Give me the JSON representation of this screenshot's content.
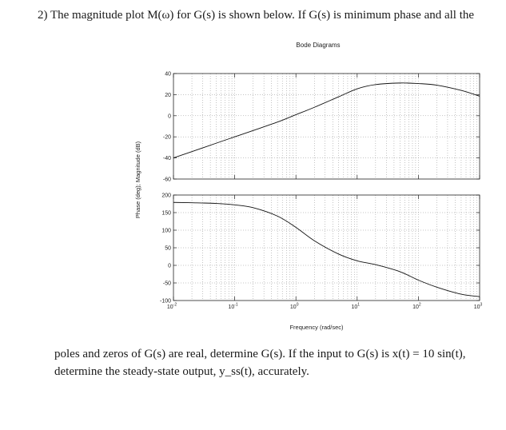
{
  "question": {
    "number": "2)",
    "intro": "The magnitude plot M(ω) for G(s) is shown below. If G(s) is minimum phase and all the",
    "line2": "poles and zeros of G(s) are real, determine G(s). If the input to G(s) is x(t) = 10 sin(t),",
    "line3": "determine the steady-state output, y_ss(t), accurately."
  },
  "chart_data": {
    "type": "line",
    "title": "Bode Diagrams",
    "xlabel": "Frequency (rad/sec)",
    "ylabel": "Phase (deg); Magnitude (dB)",
    "xscale": "log",
    "xlim": [
      0.01,
      1000
    ],
    "x_ticks": [
      {
        "base": "10",
        "exp": "-2"
      },
      {
        "base": "10",
        "exp": "-1"
      },
      {
        "base": "10",
        "exp": "0"
      },
      {
        "base": "10",
        "exp": "1"
      },
      {
        "base": "10",
        "exp": "2"
      },
      {
        "base": "10",
        "exp": "3"
      }
    ],
    "grid": true,
    "panels": [
      {
        "name": "magnitude",
        "ylim": [
          -60,
          40
        ],
        "y_ticks": [
          "40",
          "20",
          "0",
          "-20",
          "-40",
          "-60"
        ],
        "x": [
          0.01,
          0.02,
          0.05,
          0.1,
          0.2,
          0.5,
          1,
          2,
          5,
          10,
          20,
          50,
          100,
          200,
          500,
          1000
        ],
        "y": [
          -40,
          -34,
          -26,
          -20,
          -14,
          -6,
          1,
          8,
          18,
          25.5,
          29.5,
          31,
          30.5,
          29,
          24,
          18.5
        ]
      },
      {
        "name": "phase",
        "ylim": [
          -100,
          200
        ],
        "y_ticks": [
          "200",
          "150",
          "100",
          "50",
          "0",
          "-50",
          "-100"
        ],
        "x": [
          0.01,
          0.02,
          0.05,
          0.1,
          0.2,
          0.5,
          1,
          2,
          5,
          10,
          20,
          50,
          100,
          200,
          500,
          1000
        ],
        "y": [
          179,
          178,
          176,
          172,
          164,
          140,
          108,
          70,
          32,
          13,
          2,
          -18,
          -42,
          -62,
          -82,
          -89
        ]
      }
    ]
  }
}
